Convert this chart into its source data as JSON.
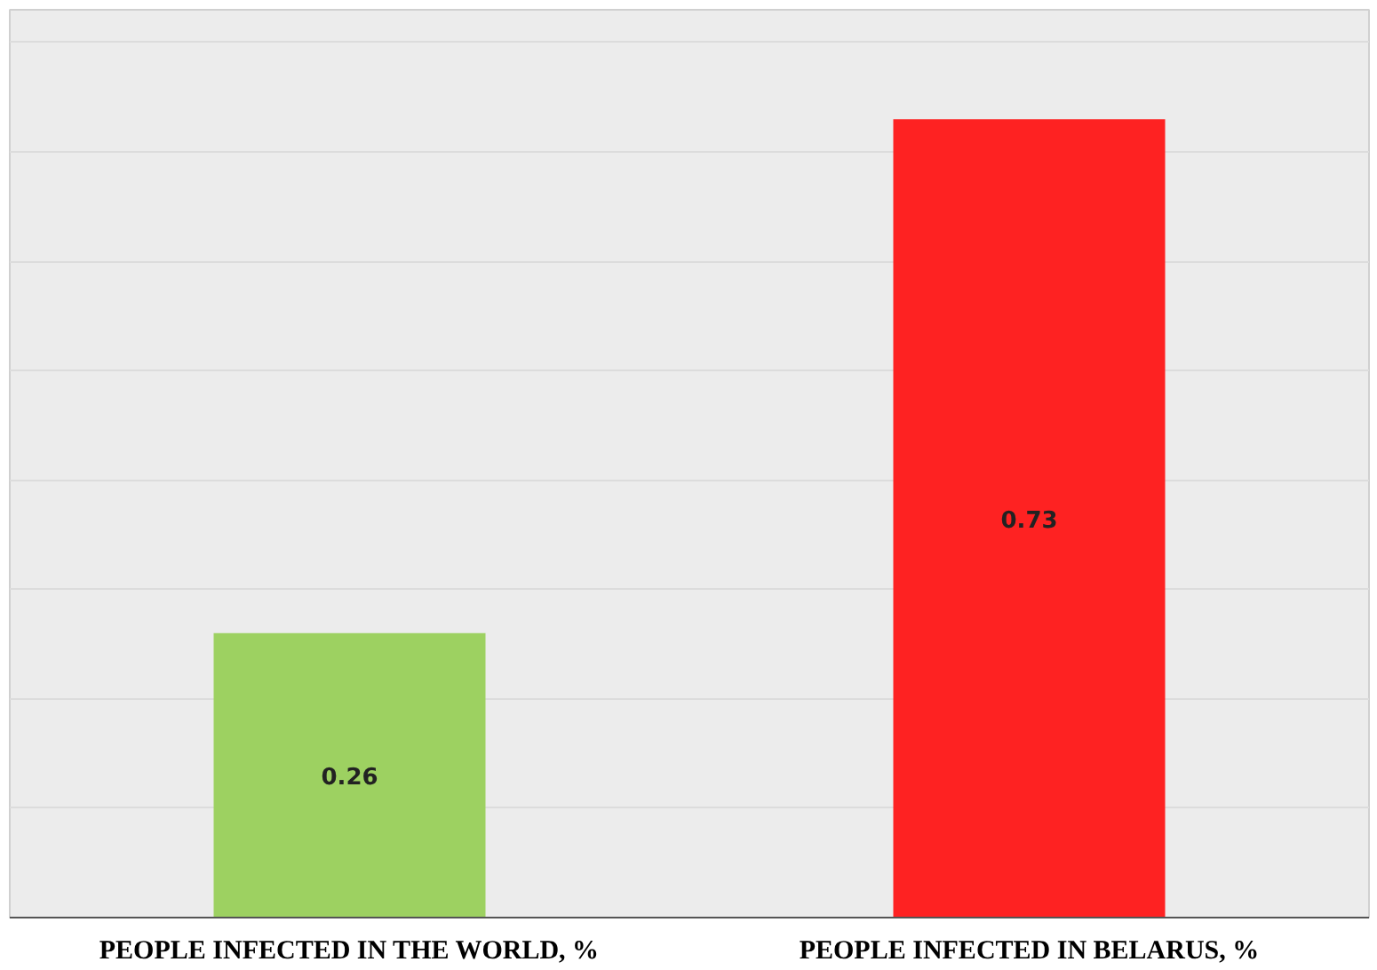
{
  "chart_data": {
    "type": "bar",
    "categories": [
      "PEOPLE INFECTED IN THE WORLD, %",
      "PEOPLE INFECTED IN BELARUS, %"
    ],
    "values": [
      0.26,
      0.73
    ],
    "colors": [
      "#9dd161",
      "#fe2222"
    ],
    "data_labels": true,
    "ylim": [
      0,
      0.83
    ],
    "yticks": [
      {
        "value": 0,
        "label": null
      },
      {
        "value": 0.1,
        "label": null
      },
      {
        "value": 0.2,
        "label": null
      },
      {
        "value": 0.3,
        "label": null
      },
      {
        "value": 0.4,
        "label": null
      },
      {
        "value": 0.5,
        "label": null
      },
      {
        "value": 0.6,
        "label": null
      },
      {
        "value": 0.7,
        "label": null
      },
      {
        "value": 0.8,
        "label": null
      }
    ],
    "grid": "y",
    "tick_labels": "x"
  }
}
